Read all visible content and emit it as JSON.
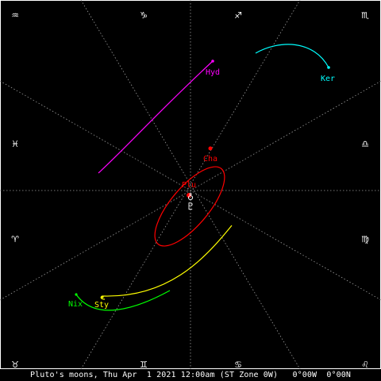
{
  "app": {
    "status_text": "Pluto's moons, Thu Apr  1 2021 12:00am (ST Zone 0W)   0°00W  0°00N"
  },
  "zodiac_signs": {
    "top_left": "♒",
    "top_center_left": "♑",
    "top_center_right": "♐",
    "top_right": "♏",
    "left_upper": "♓",
    "right_upper": "♎",
    "left_lower": "♈",
    "right_lower": "♍",
    "bottom_left": "♉",
    "bottom_center_left": "♊",
    "bottom_center_right": "♋",
    "bottom_right": "♌"
  },
  "bodies": {
    "pluto_glyph": "♇",
    "center_marker": "♁"
  },
  "moons": [
    {
      "label": "Hyd",
      "color": "#ff00ff"
    },
    {
      "label": "Ker",
      "color": "#00ffff"
    },
    {
      "label": "Cha",
      "color": "#ff0000"
    },
    {
      "label": "Plu",
      "color": "#ff0000"
    },
    {
      "label": "Nix",
      "color": "#00ff00"
    },
    {
      "label": "Sty",
      "color": "#ffff00"
    }
  ],
  "colors": {
    "background": "#000000",
    "frame": "#ffffff",
    "grid": "#9a9a9a",
    "text": "#ffffff"
  }
}
